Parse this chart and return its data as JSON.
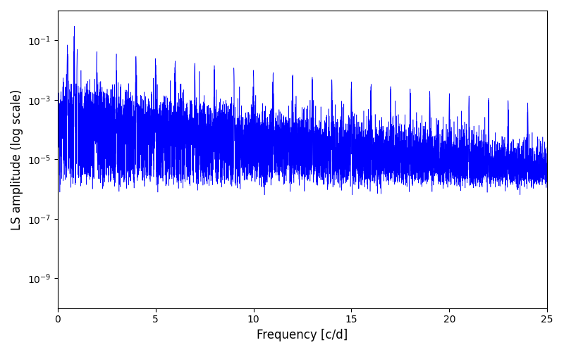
{
  "title": "",
  "xlabel": "Frequency [c/d]",
  "ylabel": "LS amplitude (log scale)",
  "line_color": "#0000ff",
  "background_color": "#ffffff",
  "xlim": [
    0,
    25
  ],
  "ylim": [
    1e-10,
    1.0
  ],
  "yticks": [
    1e-09,
    1e-07,
    1e-05,
    0.001,
    0.1
  ],
  "xticks": [
    0,
    5,
    10,
    15,
    20,
    25
  ],
  "figsize": [
    8.0,
    5.0
  ],
  "dpi": 100,
  "seed": 42,
  "n_points": 10000,
  "freq_max": 25.0,
  "base_amplitude": 0.0003,
  "decay_rate": 0.18,
  "spike_interval": 1.0,
  "noise_floor": 3e-06,
  "main_peak_freq": 0.85,
  "main_peak_amp": 0.3,
  "line_width": 0.4
}
